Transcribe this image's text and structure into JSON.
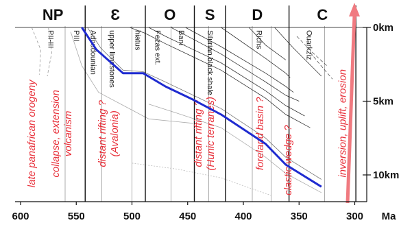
{
  "periods": [
    {
      "label": "NP",
      "from": 600,
      "to": 542
    },
    {
      "label": "Ɛ",
      "from": 542,
      "to": 488
    },
    {
      "label": "O",
      "from": 488,
      "to": 444
    },
    {
      "label": "S",
      "from": 444,
      "to": 416
    },
    {
      "label": "D",
      "from": 416,
      "to": 359
    },
    {
      "label": "C",
      "from": 359,
      "to": 299
    }
  ],
  "x_axis": {
    "unit": "Ma",
    "ticks": [
      600,
      550,
      500,
      450,
      400,
      350,
      300
    ]
  },
  "depth_axis": {
    "ticks": [
      {
        "label": "0km",
        "depth": 0
      },
      {
        "label": "5km",
        "depth": 5
      },
      {
        "label": "10km",
        "depth": 10
      }
    ]
  },
  "unit_labels": [
    {
      "text": "PII-III",
      "age": 575
    },
    {
      "text": "PIII",
      "age": 552
    },
    {
      "text": "Adoudounian",
      "age": 537
    },
    {
      "text": "upper limestones",
      "age": 520
    },
    {
      "text": "hiatus",
      "age": 497
    },
    {
      "text": "Fezas ext.",
      "age": 479
    },
    {
      "text": "Bani",
      "age": 458
    },
    {
      "text": "Silurian black shale",
      "age": 432
    },
    {
      "text": "Richs",
      "age": 388
    },
    {
      "text": "Ouarkziz",
      "age": 343
    }
  ],
  "events": [
    {
      "lines": [
        "late panafrican orogeny"
      ],
      "age": 587,
      "depth": 7.2
    },
    {
      "lines": [
        "collapse, extension",
        "volcanism"
      ],
      "age": 560,
      "depth": 7.2
    },
    {
      "lines": [
        "distant rifting ?",
        "(Avalonia)"
      ],
      "age": 518,
      "depth": 7.2
    },
    {
      "lines": [
        "distant rifting ?",
        "(Hunic terranes)"
      ],
      "age": 432,
      "depth": 7.2
    },
    {
      "lines": [
        "foreland basin ?"
      ],
      "age": 382,
      "depth": 7.2
    },
    {
      "lines": [
        "clastic wedge ?"
      ],
      "age": 357,
      "depth": 9
    },
    {
      "lines": [
        "inversion, uplift, erosion"
      ],
      "age": 308,
      "depth": 6.5
    }
  ],
  "burial_curve": {
    "color": "#1f2bd0",
    "points": [
      [
        545,
        0
      ],
      [
        532,
        1.5
      ],
      [
        508,
        3.1
      ],
      [
        490,
        3.1
      ],
      [
        470,
        4.0
      ],
      [
        445,
        4.9
      ],
      [
        420,
        5.9
      ],
      [
        380,
        7.9
      ],
      [
        362,
        9.3
      ],
      [
        330,
        10.8
      ]
    ]
  },
  "uplift_arrow_color": "#f07a80",
  "event_color": "#e8303a"
}
